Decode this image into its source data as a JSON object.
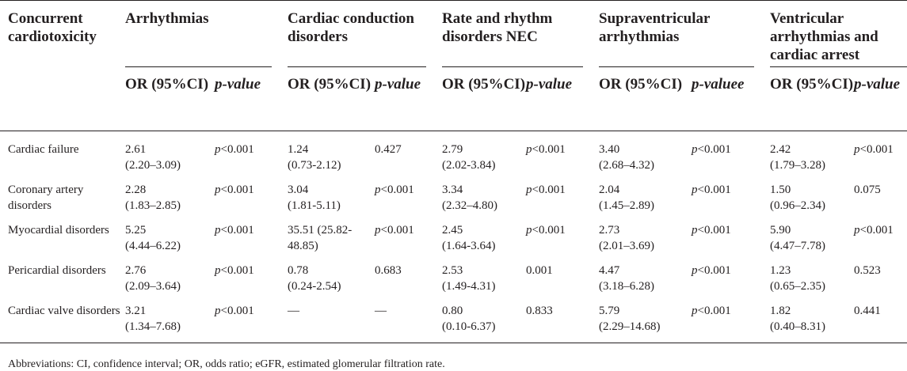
{
  "header": {
    "row_label": "Concurrent cardiotoxicity",
    "groups": [
      "Arrhythmias",
      "Cardiac conduction disorders",
      "Rate and rhythm disorders NEC",
      "Supraventricular arrhythmias",
      "Ventricular arrhythmias and cardiac arrest"
    ],
    "sub_or": "OR (95%CI)",
    "sub_p": [
      "p-value",
      "p-value",
      "p-value",
      "p-valuee",
      "p-value"
    ]
  },
  "rows": [
    {
      "label": "Cardiac failure",
      "cells": [
        {
          "or": "2.61",
          "ci": "(2.20–3.09)",
          "p": "<0.001",
          "p_italic": true
        },
        {
          "or": "1.24",
          "ci": "(0.73-2.12)",
          "p": "0.427",
          "p_italic": false
        },
        {
          "or": "2.79",
          "ci": "(2.02-3.84)",
          "p": "<0.001",
          "p_italic": true
        },
        {
          "or": "3.40",
          "ci": "(2.68–4.32)",
          "p": "<0.001",
          "p_italic": true
        },
        {
          "or": "2.42",
          "ci": "(1.79–3.28)",
          "p": "<0.001",
          "p_italic": true
        }
      ]
    },
    {
      "label": "Coronary artery disorders",
      "cells": [
        {
          "or": "2.28",
          "ci": "(1.83–2.85)",
          "p": "<0.001",
          "p_italic": true
        },
        {
          "or": "3.04",
          "ci": "(1.81-5.11)",
          "p": "<0.001",
          "p_italic": true
        },
        {
          "or": "3.34",
          "ci": "(2.32–4.80)",
          "p": "<0.001",
          "p_italic": true
        },
        {
          "or": "2.04",
          "ci": "(1.45–2.89)",
          "p": "<0.001",
          "p_italic": true
        },
        {
          "or": "1.50",
          "ci": "(0.96–2.34)",
          "p": "0.075",
          "p_italic": false
        }
      ]
    },
    {
      "label": "Myocardial disorders",
      "cells": [
        {
          "or": "5.25",
          "ci": "(4.44–6.22)",
          "p": "<0.001",
          "p_italic": true
        },
        {
          "or": "35.51 (25.82-",
          "ci": "48.85)",
          "p": "<0.001",
          "p_italic": true
        },
        {
          "or": "2.45",
          "ci": "(1.64-3.64)",
          "p": "<0.001",
          "p_italic": true
        },
        {
          "or": "2.73",
          "ci": "(2.01–3.69)",
          "p": "<0.001",
          "p_italic": true
        },
        {
          "or": "5.90",
          "ci": "(4.47–7.78)",
          "p": "<0.001",
          "p_italic": true
        }
      ]
    },
    {
      "label": "Pericardial disorders",
      "cells": [
        {
          "or": "2.76",
          "ci": "(2.09–3.64)",
          "p": "<0.001",
          "p_italic": true
        },
        {
          "or": "0.78",
          "ci": "(0.24-2.54)",
          "p": "0.683",
          "p_italic": false
        },
        {
          "or": "2.53",
          "ci": "(1.49-4.31)",
          "p": "0.001",
          "p_italic": false
        },
        {
          "or": "4.47",
          "ci": "(3.18–6.28)",
          "p": "<0.001",
          "p_italic": true
        },
        {
          "or": "1.23",
          "ci": "(0.65–2.35)",
          "p": "0.523",
          "p_italic": false
        }
      ]
    },
    {
      "label": "Cardiac valve disorders",
      "cells": [
        {
          "or": "3.21",
          "ci": "(1.34–7.68)",
          "p": "<0.001",
          "p_italic": true
        },
        {
          "or": "—",
          "ci": "",
          "p": "—",
          "p_italic": false
        },
        {
          "or": "0.80",
          "ci": "(0.10-6.37)",
          "p": "0.833",
          "p_italic": false
        },
        {
          "or": "5.79",
          "ci": "(2.29–14.68)",
          "p": "<0.001",
          "p_italic": true
        },
        {
          "or": "1.82",
          "ci": "(0.40–8.31)",
          "p": "0.441",
          "p_italic": false
        }
      ]
    }
  ],
  "footnote": "Abbreviations: CI, confidence interval; OR, odds ratio; eGFR, estimated glomerular filtration rate."
}
